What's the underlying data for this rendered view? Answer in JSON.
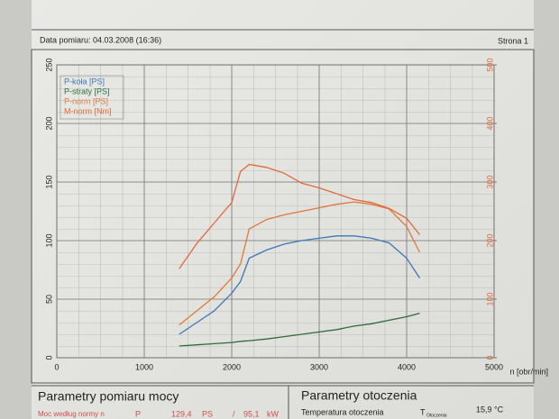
{
  "header": {
    "date": "Data pomiaru: 04.03.2008 (16:36)",
    "page": "Strona 1"
  },
  "chart_data": {
    "type": "line",
    "x": [
      1400,
      1600,
      1800,
      2000,
      2100,
      2200,
      2400,
      2600,
      2800,
      3000,
      3200,
      3400,
      3600,
      3800,
      4000,
      4150
    ],
    "xlim": [
      0,
      5000
    ],
    "xticks": [
      0,
      1000,
      2000,
      3000,
      4000,
      5000
    ],
    "x_label": "n [obr/min]",
    "ylim": [
      0,
      250
    ],
    "yticks": [
      0,
      50,
      100,
      150,
      200,
      250
    ],
    "y2lim": [
      0,
      500
    ],
    "y2ticks": [
      0,
      100,
      200,
      300,
      400,
      500
    ],
    "grid": true,
    "legend": "upper left",
    "series": [
      {
        "name": "P-koła [PS]",
        "color": "#3c78b4",
        "values": [
          20,
          30,
          40,
          55,
          65,
          85,
          92,
          97,
          100,
          102,
          104,
          104,
          102,
          98,
          85,
          68
        ]
      },
      {
        "name": "P-straty [PS]",
        "color": "#2e6b3c",
        "values": [
          10,
          11,
          12,
          13,
          14,
          14.5,
          16,
          18,
          20,
          22,
          24,
          27,
          29,
          32,
          35,
          38
        ]
      },
      {
        "name": "P-norm [PS]",
        "color": "#e0783c",
        "values": [
          28,
          40,
          52,
          68,
          80,
          110,
          118,
          122,
          125,
          128,
          131,
          133,
          131,
          127,
          112,
          90
        ]
      },
      {
        "name": "M-norm [Nm]",
        "color": "#e06a3a",
        "axis": "y2",
        "values": [
          152,
          195,
          230,
          265,
          318,
          330,
          325,
          315,
          298,
          290,
          280,
          270,
          265,
          255,
          238,
          210
        ]
      }
    ]
  },
  "sections": {
    "power": {
      "title": "Parametry pomiaru mocy",
      "label": "Moc według normy n",
      "symbol": "P",
      "value": "129,4",
      "unit": "PS",
      "sep": "/",
      "value2": "95,1",
      "unit2": "kW"
    },
    "ambient": {
      "title": "Parametry otoczenia",
      "label": "Temperatura otoczenia",
      "symbol": "T",
      "sub": "Otoczenia",
      "value": "15,9",
      "unit": "°C"
    }
  }
}
